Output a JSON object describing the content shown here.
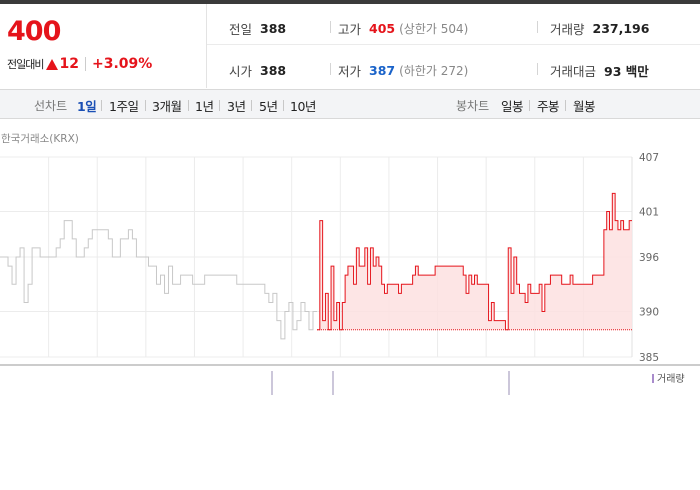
{
  "quote": {
    "price": "400",
    "change_label": "전일대비",
    "change_amount": "12",
    "change_percent": "+3.09%"
  },
  "stats": {
    "prev_close": {
      "label": "전일",
      "value": "388"
    },
    "high": {
      "label": "고가",
      "value": "405",
      "sub": "(상한가 504)"
    },
    "volume": {
      "label": "거래량",
      "value": "237,196"
    },
    "open": {
      "label": "시가",
      "value": "388"
    },
    "low": {
      "label": "저가",
      "value": "387",
      "sub": "(하한가 272)"
    },
    "trade_value": {
      "label": "거래대금",
      "value": "93 백만"
    }
  },
  "toolbar": {
    "line_label": "선차트",
    "line_periods": [
      "1일",
      "1주일",
      "3개월",
      "1년",
      "3년",
      "5년",
      "10년"
    ],
    "active_period": "1일",
    "candle_label": "봉차트",
    "candle_periods": [
      "일봉",
      "주봉",
      "월봉"
    ]
  },
  "market_label": "한국거래소(KRX)",
  "volume_legend": "거래량",
  "colors": {
    "up": "#e5141b",
    "down": "#1a63c9",
    "prev": "#c8c8c8",
    "fill": "#fde0e0"
  },
  "chart_data": {
    "type": "line",
    "title": "",
    "xlabel": "",
    "ylabel": "",
    "ylim": [
      385,
      407
    ],
    "y_ticks": [
      385,
      390,
      396,
      401,
      407
    ],
    "baseline": 388,
    "series": [
      {
        "role": "previous-session",
        "values": [
          396,
          396,
          395,
          393,
          396,
          397,
          391,
          393,
          397,
          397,
          396,
          396,
          396,
          396,
          397,
          398,
          400,
          400,
          398,
          396,
          396,
          397,
          398,
          399,
          399,
          399,
          399,
          398,
          396,
          396,
          398,
          398,
          399,
          398,
          396,
          396,
          396,
          395,
          395,
          393,
          394,
          392,
          395,
          393,
          393,
          394,
          394,
          394,
          393,
          393,
          393,
          394,
          394,
          394,
          394,
          394,
          394,
          394,
          394,
          393,
          393,
          393,
          393,
          393,
          393,
          393,
          392,
          391,
          392,
          389,
          387,
          390,
          391,
          388,
          389,
          391,
          390,
          388,
          390
        ]
      },
      {
        "role": "current-session",
        "values": [
          388,
          400,
          389,
          392,
          388,
          395,
          389,
          391,
          388,
          391,
          394,
          395,
          395,
          393,
          397,
          395,
          395,
          397,
          393,
          397,
          395,
          396,
          395,
          393,
          392,
          393,
          393,
          393,
          393,
          392,
          393,
          393,
          393,
          393,
          394,
          395,
          394,
          394,
          394,
          394,
          394,
          394,
          395,
          395,
          395,
          395,
          395,
          395,
          395,
          395,
          395,
          395,
          394,
          392,
          394,
          393,
          394,
          393,
          393,
          393,
          393,
          389,
          391,
          389,
          389,
          389,
          389,
          388,
          397,
          392,
          396,
          393,
          392,
          392,
          391,
          393,
          392,
          392,
          392,
          393,
          390,
          393,
          393,
          394,
          394,
          394,
          394,
          393,
          393,
          393,
          394,
          393,
          393,
          393,
          393,
          393,
          393,
          393,
          394,
          394,
          394,
          394,
          399,
          401,
          399,
          403,
          400,
          399,
          400,
          399,
          399,
          400
        ]
      }
    ],
    "volume_markers": [
      272,
      333,
      509
    ]
  }
}
